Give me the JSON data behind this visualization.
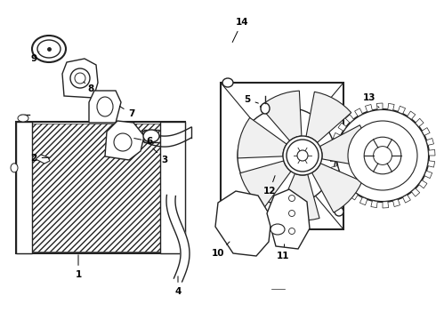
{
  "bg_color": "#ffffff",
  "line_color": "#222222",
  "label_color": "#000000",
  "figsize": [
    4.9,
    3.6
  ],
  "dpi": 100,
  "xlim": [
    0,
    490
  ],
  "ylim": [
    0,
    360
  ]
}
